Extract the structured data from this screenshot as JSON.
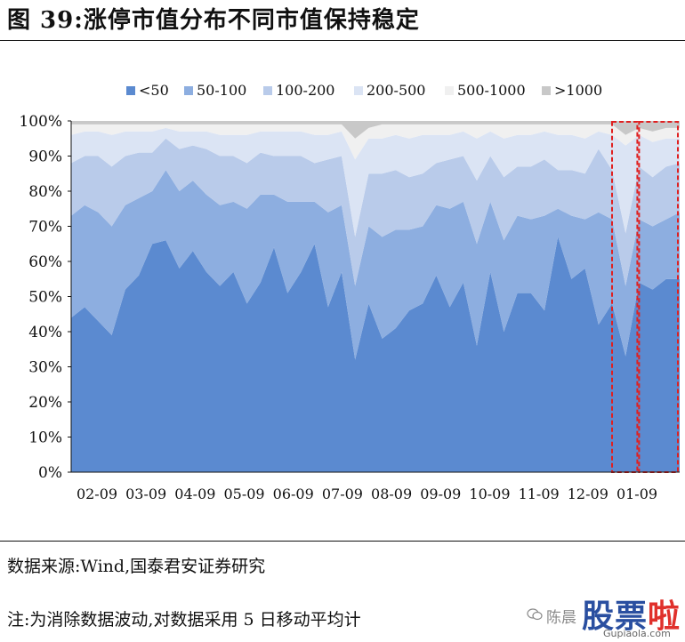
{
  "figure": {
    "title": "图 39:涨停市值分布不同市值保持稳定",
    "source": "数据来源:Wind,国泰君安证券研究",
    "note": "注:为消除数据波动,对数据采用 5 日移动平均计"
  },
  "watermark": {
    "text": "陈晨",
    "logo_main": "股票",
    "logo_accent": "啦",
    "url": "Gupiaola.com"
  },
  "chart_data": {
    "type": "area",
    "stacked": true,
    "normalized_percent": true,
    "xlabel": "",
    "ylabel": "",
    "ylim": [
      0,
      100
    ],
    "y_ticks": [
      "0%",
      "10%",
      "20%",
      "30%",
      "40%",
      "50%",
      "60%",
      "70%",
      "80%",
      "90%",
      "100%"
    ],
    "x_ticks": [
      "02-09",
      "03-09",
      "04-09",
      "05-09",
      "06-09",
      "07-09",
      "08-09",
      "09-09",
      "10-09",
      "11-09",
      "12-09",
      "01-09"
    ],
    "legend_position": "top",
    "grid": false,
    "x_start": "02-09",
    "x_end": "01-19",
    "x_step": "1 trading week",
    "series": [
      {
        "name": "<50",
        "color": "#5b8ad0",
        "values": [
          44,
          47,
          43,
          39,
          52,
          56,
          65,
          66,
          58,
          63,
          57,
          53,
          57,
          48,
          54,
          64,
          51,
          57,
          65,
          47,
          57,
          32,
          48,
          38,
          41,
          46,
          48,
          56,
          47,
          54,
          36,
          57,
          40,
          51,
          51,
          46,
          67,
          55,
          58,
          42,
          48,
          33,
          54,
          52,
          55,
          55
        ]
      },
      {
        "name": "50-100",
        "color": "#8daee0",
        "values": [
          29,
          29,
          31,
          31,
          24,
          22,
          15,
          20,
          22,
          20,
          22,
          23,
          20,
          27,
          25,
          15,
          26,
          20,
          12,
          27,
          19,
          21,
          22,
          29,
          28,
          23,
          22,
          20,
          28,
          23,
          29,
          20,
          26,
          22,
          21,
          27,
          8,
          18,
          14,
          32,
          24,
          20,
          18,
          18,
          17,
          19
        ]
      },
      {
        "name": "100-200",
        "color": "#b9cbea",
        "values": [
          15,
          14,
          16,
          17,
          14,
          13,
          11,
          9,
          12,
          10,
          13,
          14,
          13,
          13,
          12,
          11,
          13,
          13,
          11,
          15,
          14,
          14,
          15,
          18,
          17,
          15,
          15,
          12,
          14,
          13,
          18,
          13,
          18,
          14,
          15,
          16,
          11,
          13,
          13,
          18,
          14,
          15,
          15,
          14,
          15,
          14
        ]
      },
      {
        "name": "200-500",
        "color": "#dbe4f4",
        "values": [
          8,
          7,
          7,
          9,
          7,
          6,
          6,
          3,
          5,
          4,
          5,
          6,
          6,
          8,
          6,
          7,
          7,
          7,
          8,
          7,
          7,
          22,
          10,
          10,
          10,
          11,
          11,
          8,
          7,
          7,
          12,
          7,
          11,
          9,
          9,
          8,
          10,
          10,
          10,
          5,
          10,
          25,
          9,
          10,
          8,
          7
        ]
      },
      {
        "name": "500-1000",
        "color": "#f0f0f0",
        "values": [
          3,
          2,
          2,
          3,
          2,
          2,
          2,
          1,
          2,
          2,
          2,
          3,
          3,
          3,
          2,
          2,
          2,
          2,
          3,
          3,
          2,
          6,
          3,
          4,
          3,
          4,
          3,
          3,
          3,
          2,
          4,
          2,
          4,
          3,
          3,
          2,
          3,
          3,
          4,
          2,
          3,
          3,
          2,
          3,
          3,
          3
        ]
      },
      {
        "name": ">1000",
        "color": "#c8c8c8",
        "values": [
          1,
          1,
          1,
          1,
          1,
          1,
          1,
          1,
          1,
          1,
          1,
          1,
          1,
          1,
          1,
          1,
          1,
          1,
          1,
          1,
          1,
          5,
          2,
          1,
          1,
          1,
          1,
          1,
          1,
          1,
          1,
          1,
          1,
          1,
          1,
          1,
          1,
          1,
          1,
          1,
          1,
          4,
          2,
          3,
          2,
          2
        ]
      }
    ],
    "annotations": [
      {
        "type": "dashed-box",
        "color": "#e02020",
        "x_from_index": 40,
        "x_to_index": 42
      },
      {
        "type": "dashed-box",
        "color": "#e02020",
        "x_from_index": 42,
        "x_to_index": 45
      }
    ]
  }
}
